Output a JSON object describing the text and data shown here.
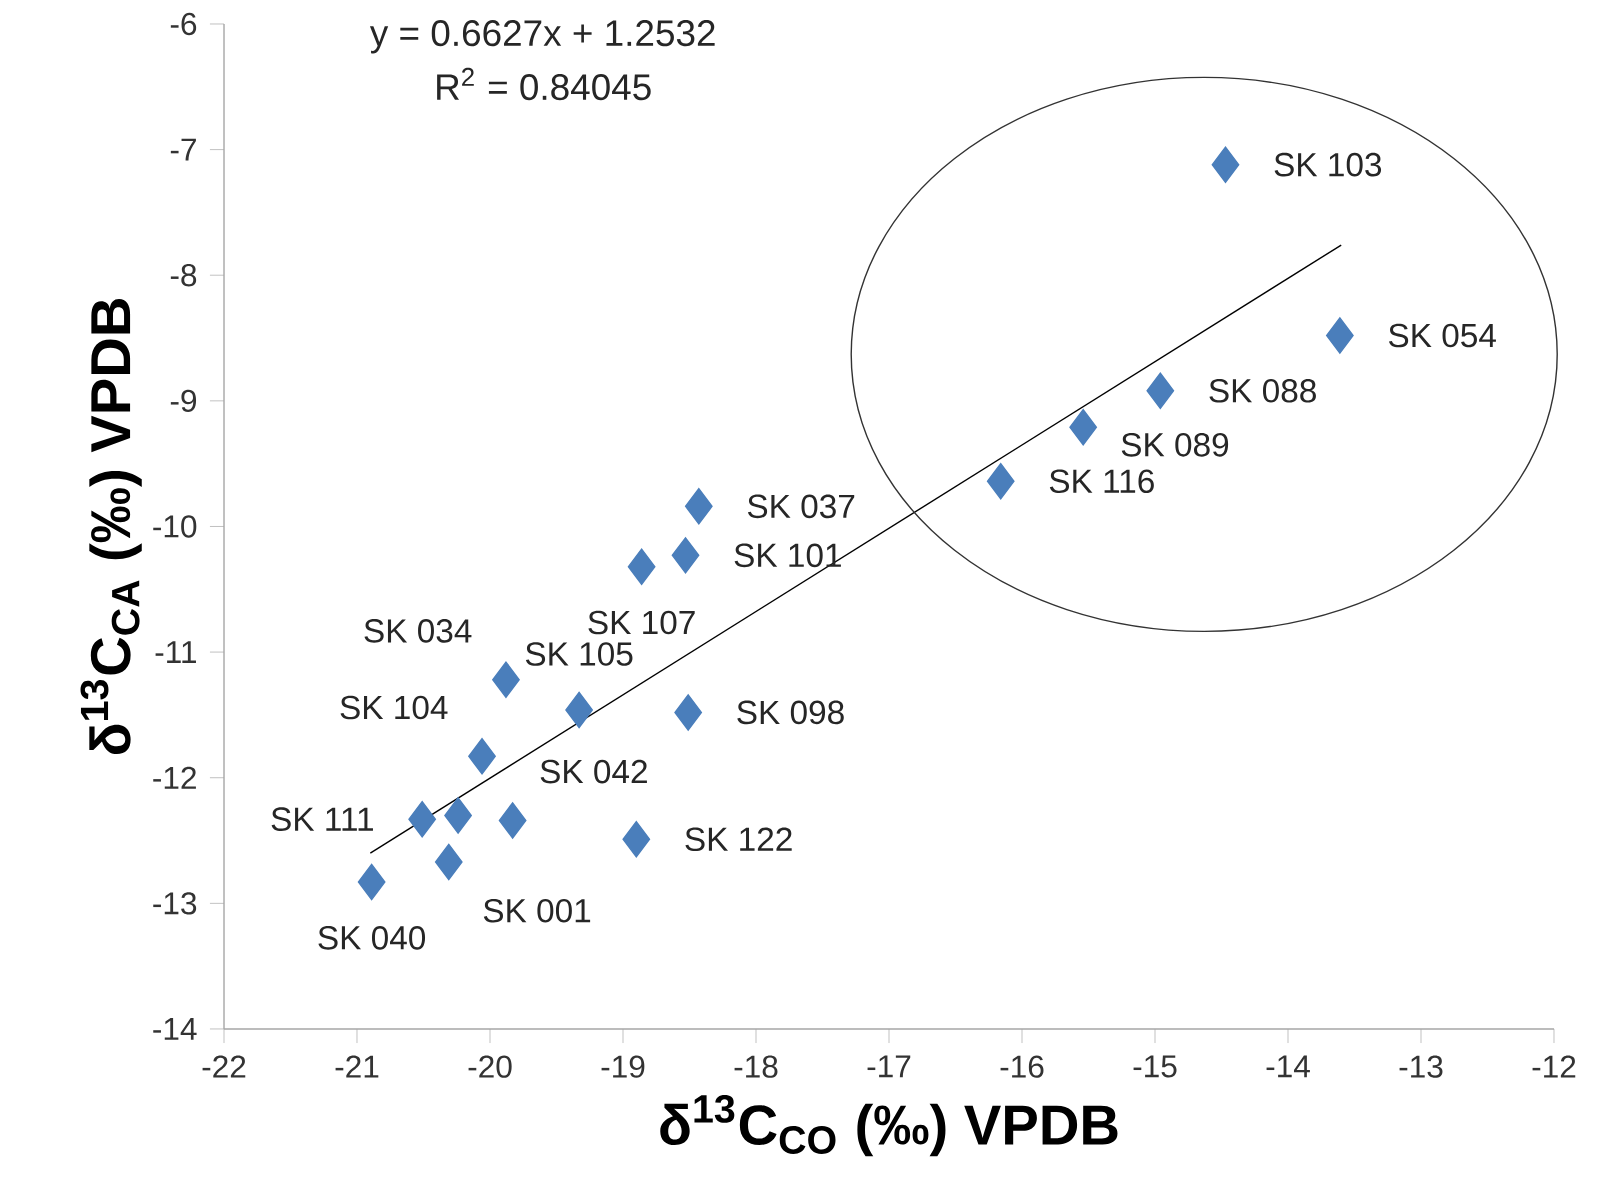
{
  "chart_data": {
    "type": "scatter",
    "xlabel": "δ$^{13}$C$_{CO}$ (‰) VPDB",
    "ylabel": "δ$^{13}$C$_{CA}$ (‰) VPDB",
    "xlim": [
      -22,
      -12
    ],
    "ylim": [
      -14,
      -6
    ],
    "xticks": [
      -22,
      -21,
      -20,
      -19,
      -18,
      -17,
      -16,
      -15,
      -14,
      -13,
      -12
    ],
    "yticks": [
      -14,
      -13,
      -12,
      -11,
      -10,
      -9,
      -8,
      -7,
      -6
    ],
    "grid": false,
    "marker": "diamond",
    "series": [
      {
        "color": "#4a7ebb",
        "x": [
          -14.47,
          -13.61,
          -14.96,
          -15.54,
          -16.16,
          -18.43,
          -18.53,
          -18.86,
          -19.88,
          -19.33,
          -18.51,
          -20.06,
          -19.83,
          -20.51,
          -18.9,
          -20.31,
          -20.89,
          -20.24
        ],
        "values": [
          -7.12,
          -8.48,
          -8.92,
          -9.21,
          -9.64,
          -9.84,
          -10.23,
          -10.32,
          -11.22,
          -11.46,
          -11.48,
          -11.83,
          -12.34,
          -12.33,
          -12.49,
          -12.67,
          -12.83,
          -12.3
        ]
      },
      {
        "type": "line",
        "color": "#000000",
        "marker": "none",
        "x": [
          -20.9,
          -13.6
        ],
        "values": [
          -12.6,
          -7.76
        ]
      }
    ],
    "annotations": [
      "y = 0.6627x + 1.2532",
      "R$^{2}$ = 0.84045",
      {
        "text": "SK 103",
        "x": -14.47,
        "y": -7.12
      },
      {
        "text": "SK 054",
        "x": -13.61,
        "y": -8.48
      },
      {
        "text": "SK 088",
        "x": -14.96,
        "y": -8.92
      },
      {
        "text": "SK 089",
        "x": -15.54,
        "y": -9.21
      },
      {
        "text": "SK 116",
        "x": -16.16,
        "y": -9.64
      },
      {
        "text": "SK 037",
        "x": -18.43,
        "y": -9.84
      },
      {
        "text": "SK 101",
        "x": -18.53,
        "y": -10.23
      },
      {
        "text": "SK 107",
        "x": -18.86,
        "y": -10.32
      },
      {
        "text": "SK 034",
        "x": -19.88,
        "y": -11.22
      },
      {
        "text": "SK 105",
        "x": -19.33,
        "y": -11.46
      },
      {
        "text": "SK 098",
        "x": -18.51,
        "y": -11.48
      },
      {
        "text": "SK 104",
        "x": -20.06,
        "y": -11.83
      },
      {
        "text": "SK 042",
        "x": -19.83,
        "y": -12.34
      },
      {
        "text": "SK 111",
        "x": -20.51,
        "y": -12.33
      },
      {
        "text": "SK 122",
        "x": -18.9,
        "y": -12.49
      },
      {
        "text": "SK 001",
        "x": -20.31,
        "y": -12.67
      },
      {
        "text": "SK 040",
        "x": -20.89,
        "y": -12.83
      }
    ]
  }
}
